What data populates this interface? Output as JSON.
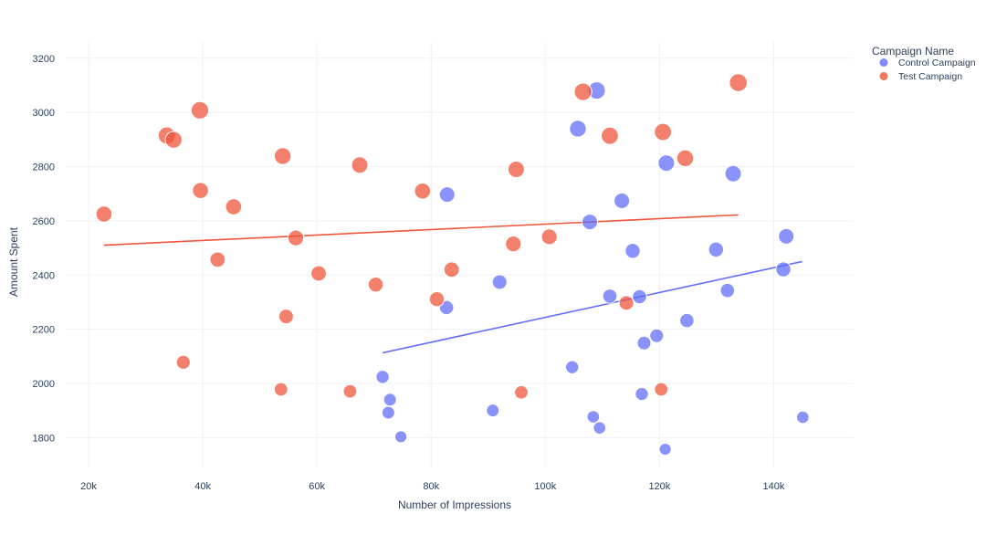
{
  "chart_data": {
    "type": "scatter",
    "xlabel": "Number of Impressions",
    "ylabel": "Amount Spent",
    "xlim": [
      16000,
      154000
    ],
    "ylim": [
      1690,
      3260
    ],
    "x_ticks": [
      20000,
      40000,
      60000,
      80000,
      100000,
      120000,
      140000
    ],
    "x_tick_labels": [
      "20k",
      "40k",
      "60k",
      "80k",
      "100k",
      "120k",
      "140k"
    ],
    "y_ticks": [
      1800,
      2000,
      2200,
      2400,
      2600,
      2800,
      3000,
      3200
    ],
    "y_tick_labels": [
      "1800",
      "2000",
      "2200",
      "2400",
      "2600",
      "2800",
      "3000",
      "3200"
    ],
    "grid": true,
    "legend": {
      "title": "Campaign Name",
      "placement": "top-right"
    },
    "series": [
      {
        "name": "Control Campaign",
        "color": "#636efa",
        "trendline": {
          "x": [
            71500,
            145000
          ],
          "y": [
            2113,
            2450
          ]
        },
        "points": [
          {
            "x": 109000,
            "y": 3081,
            "size": 0.95
          },
          {
            "x": 105700,
            "y": 2940,
            "size": 0.92
          },
          {
            "x": 121200,
            "y": 2813,
            "size": 0.9
          },
          {
            "x": 132900,
            "y": 2774,
            "size": 0.9
          },
          {
            "x": 82800,
            "y": 2697,
            "size": 0.85
          },
          {
            "x": 113400,
            "y": 2674,
            "size": 0.85
          },
          {
            "x": 107800,
            "y": 2596,
            "size": 0.85
          },
          {
            "x": 142200,
            "y": 2543,
            "size": 0.85
          },
          {
            "x": 115300,
            "y": 2489,
            "size": 0.82
          },
          {
            "x": 129900,
            "y": 2494,
            "size": 0.82
          },
          {
            "x": 141700,
            "y": 2421,
            "size": 0.82
          },
          {
            "x": 92000,
            "y": 2374,
            "size": 0.8
          },
          {
            "x": 131900,
            "y": 2343,
            "size": 0.78
          },
          {
            "x": 111300,
            "y": 2322,
            "size": 0.78
          },
          {
            "x": 116500,
            "y": 2320,
            "size": 0.78
          },
          {
            "x": 82700,
            "y": 2280,
            "size": 0.78
          },
          {
            "x": 124800,
            "y": 2232,
            "size": 0.78
          },
          {
            "x": 119500,
            "y": 2176,
            "size": 0.75
          },
          {
            "x": 117300,
            "y": 2149,
            "size": 0.75
          },
          {
            "x": 104700,
            "y": 2060,
            "size": 0.72
          },
          {
            "x": 71500,
            "y": 2024,
            "size": 0.72
          },
          {
            "x": 116900,
            "y": 1961,
            "size": 0.72
          },
          {
            "x": 72800,
            "y": 1940,
            "size": 0.7
          },
          {
            "x": 90800,
            "y": 1900,
            "size": 0.7
          },
          {
            "x": 72500,
            "y": 1892,
            "size": 0.7
          },
          {
            "x": 108400,
            "y": 1877,
            "size": 0.68
          },
          {
            "x": 145100,
            "y": 1875,
            "size": 0.68
          },
          {
            "x": 109500,
            "y": 1836,
            "size": 0.68
          },
          {
            "x": 74700,
            "y": 1803,
            "size": 0.66
          },
          {
            "x": 121000,
            "y": 1757,
            "size": 0.66
          }
        ]
      },
      {
        "name": "Test Campaign",
        "color": "#ef553b",
        "trendline": {
          "x": [
            22700,
            133800
          ],
          "y": [
            2510,
            2622
          ]
        },
        "points": [
          {
            "x": 133800,
            "y": 3110,
            "size": 0.98
          },
          {
            "x": 106600,
            "y": 3076,
            "size": 0.96
          },
          {
            "x": 39500,
            "y": 3008,
            "size": 0.96
          },
          {
            "x": 120600,
            "y": 2928,
            "size": 0.94
          },
          {
            "x": 33700,
            "y": 2915,
            "size": 0.94
          },
          {
            "x": 111300,
            "y": 2914,
            "size": 0.94
          },
          {
            "x": 34900,
            "y": 2899,
            "size": 0.92
          },
          {
            "x": 54000,
            "y": 2839,
            "size": 0.92
          },
          {
            "x": 124500,
            "y": 2831,
            "size": 0.92
          },
          {
            "x": 67500,
            "y": 2806,
            "size": 0.9
          },
          {
            "x": 94900,
            "y": 2790,
            "size": 0.9
          },
          {
            "x": 39600,
            "y": 2712,
            "size": 0.88
          },
          {
            "x": 78500,
            "y": 2710,
            "size": 0.88
          },
          {
            "x": 45400,
            "y": 2652,
            "size": 0.88
          },
          {
            "x": 22700,
            "y": 2625,
            "size": 0.88
          },
          {
            "x": 100700,
            "y": 2541,
            "size": 0.86
          },
          {
            "x": 56300,
            "y": 2537,
            "size": 0.86
          },
          {
            "x": 94400,
            "y": 2515,
            "size": 0.86
          },
          {
            "x": 42600,
            "y": 2457,
            "size": 0.84
          },
          {
            "x": 83600,
            "y": 2420,
            "size": 0.84
          },
          {
            "x": 60300,
            "y": 2406,
            "size": 0.84
          },
          {
            "x": 70300,
            "y": 2365,
            "size": 0.82
          },
          {
            "x": 81000,
            "y": 2311,
            "size": 0.82
          },
          {
            "x": 114200,
            "y": 2297,
            "size": 0.8
          },
          {
            "x": 54600,
            "y": 2247,
            "size": 0.8
          },
          {
            "x": 36600,
            "y": 2078,
            "size": 0.76
          },
          {
            "x": 120300,
            "y": 1978,
            "size": 0.74
          },
          {
            "x": 53700,
            "y": 1978,
            "size": 0.74
          },
          {
            "x": 65800,
            "y": 1971,
            "size": 0.74
          },
          {
            "x": 95800,
            "y": 1967,
            "size": 0.74
          }
        ]
      }
    ]
  }
}
